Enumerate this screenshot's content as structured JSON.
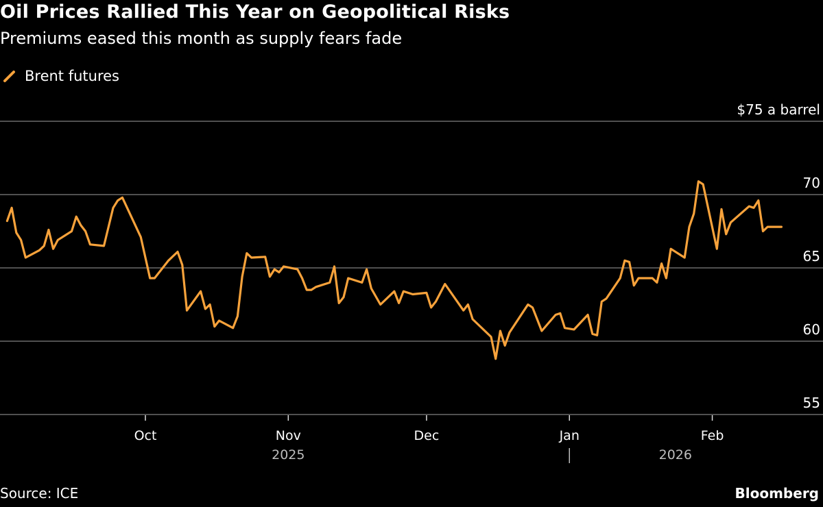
{
  "title": "Oil Prices Rallied This Year on Geopolitical Risks",
  "subtitle": "Premiums eased this month as supply fears fade",
  "source": "Source: ICE",
  "brand": "Bloomberg",
  "colors": {
    "background": "#000000",
    "series": "#f7a23b",
    "grid": "#6b6b6b",
    "year_label": "#bdbdbd"
  },
  "chart_data": {
    "type": "line",
    "title": "Oil Prices Rallied This Year on Geopolitical Risks",
    "subtitle": "Premiums eased this month as supply fears fade",
    "ylabel": "$75 a barrel",
    "ylim": [
      55,
      75
    ],
    "yticks": [
      {
        "value": 75,
        "label": "$75 a barrel"
      },
      {
        "value": 70,
        "label": "70"
      },
      {
        "value": 65,
        "label": "65"
      },
      {
        "value": 60,
        "label": "60"
      },
      {
        "value": 55,
        "label": "55"
      }
    ],
    "xlim": [
      "2025-09-01",
      "2026-02-16"
    ],
    "xticks": [
      {
        "date": "2025-10-01",
        "label": "Oct"
      },
      {
        "date": "2025-11-01",
        "label": "Nov"
      },
      {
        "date": "2025-12-01",
        "label": "Dec"
      },
      {
        "date": "2026-01-01",
        "label": "Jan"
      },
      {
        "date": "2026-02-01",
        "label": "Feb"
      }
    ],
    "year_labels": [
      {
        "date": "2025-11-01",
        "label": "2025"
      },
      {
        "date": "2026-01-24",
        "label": "2026"
      }
    ],
    "year_separator": "2026-01-01",
    "grid": true,
    "legend": "top-left",
    "series": [
      {
        "name": "Brent futures",
        "points": [
          [
            "2025-09-01",
            68.2
          ],
          [
            "2025-09-02",
            69.1
          ],
          [
            "2025-09-03",
            67.4
          ],
          [
            "2025-09-04",
            66.9
          ],
          [
            "2025-09-05",
            65.7
          ],
          [
            "2025-09-08",
            66.2
          ],
          [
            "2025-09-09",
            66.5
          ],
          [
            "2025-09-10",
            67.6
          ],
          [
            "2025-09-11",
            66.3
          ],
          [
            "2025-09-12",
            66.9
          ],
          [
            "2025-09-15",
            67.5
          ],
          [
            "2025-09-16",
            68.5
          ],
          [
            "2025-09-17",
            67.9
          ],
          [
            "2025-09-18",
            67.5
          ],
          [
            "2025-09-19",
            66.6
          ],
          [
            "2025-09-22",
            66.5
          ],
          [
            "2025-09-24",
            69.1
          ],
          [
            "2025-09-25",
            69.6
          ],
          [
            "2025-09-26",
            69.8
          ],
          [
            "2025-09-30",
            67.1
          ],
          [
            "2025-10-02",
            64.3
          ],
          [
            "2025-10-03",
            64.3
          ],
          [
            "2025-10-06",
            65.5
          ],
          [
            "2025-10-08",
            66.1
          ],
          [
            "2025-10-09",
            65.2
          ],
          [
            "2025-10-10",
            62.1
          ],
          [
            "2025-10-13",
            63.4
          ],
          [
            "2025-10-14",
            62.2
          ],
          [
            "2025-10-15",
            62.5
          ],
          [
            "2025-10-16",
            61.0
          ],
          [
            "2025-10-17",
            61.4
          ],
          [
            "2025-10-20",
            60.9
          ],
          [
            "2025-10-21",
            61.7
          ],
          [
            "2025-10-22",
            64.4
          ],
          [
            "2025-10-23",
            66.0
          ],
          [
            "2025-10-24",
            65.7
          ],
          [
            "2025-10-27",
            65.75
          ],
          [
            "2025-10-28",
            64.4
          ],
          [
            "2025-10-29",
            64.9
          ],
          [
            "2025-10-30",
            64.7
          ],
          [
            "2025-10-31",
            65.1
          ],
          [
            "2025-11-03",
            64.9
          ],
          [
            "2025-11-04",
            64.3
          ],
          [
            "2025-11-05",
            63.5
          ],
          [
            "2025-11-06",
            63.5
          ],
          [
            "2025-11-07",
            63.7
          ],
          [
            "2025-11-10",
            64.0
          ],
          [
            "2025-11-11",
            65.1
          ],
          [
            "2025-11-12",
            62.6
          ],
          [
            "2025-11-13",
            63.0
          ],
          [
            "2025-11-14",
            64.3
          ],
          [
            "2025-11-17",
            64.0
          ],
          [
            "2025-11-18",
            64.9
          ],
          [
            "2025-11-19",
            63.6
          ],
          [
            "2025-11-21",
            62.5
          ],
          [
            "2025-11-24",
            63.4
          ],
          [
            "2025-11-25",
            62.6
          ],
          [
            "2025-11-26",
            63.4
          ],
          [
            "2025-11-28",
            63.2
          ],
          [
            "2025-12-01",
            63.3
          ],
          [
            "2025-12-02",
            62.3
          ],
          [
            "2025-12-03",
            62.7
          ],
          [
            "2025-12-05",
            63.9
          ],
          [
            "2025-12-09",
            62.1
          ],
          [
            "2025-12-10",
            62.5
          ],
          [
            "2025-12-11",
            61.5
          ],
          [
            "2025-12-15",
            60.3
          ],
          [
            "2025-12-16",
            58.8
          ],
          [
            "2025-12-17",
            60.7
          ],
          [
            "2025-12-18",
            59.7
          ],
          [
            "2025-12-19",
            60.6
          ],
          [
            "2025-12-23",
            62.5
          ],
          [
            "2025-12-24",
            62.3
          ],
          [
            "2025-12-26",
            60.7
          ],
          [
            "2025-12-29",
            61.8
          ],
          [
            "2025-12-30",
            61.9
          ],
          [
            "2025-12-31",
            60.9
          ],
          [
            "2026-01-02",
            60.8
          ],
          [
            "2026-01-05",
            61.8
          ],
          [
            "2026-01-06",
            60.5
          ],
          [
            "2026-01-07",
            60.4
          ],
          [
            "2026-01-08",
            62.7
          ],
          [
            "2026-01-09",
            62.9
          ],
          [
            "2026-01-12",
            64.3
          ],
          [
            "2026-01-13",
            65.5
          ],
          [
            "2026-01-14",
            65.4
          ],
          [
            "2026-01-15",
            63.8
          ],
          [
            "2026-01-16",
            64.3
          ],
          [
            "2026-01-19",
            64.3
          ],
          [
            "2026-01-20",
            64.0
          ],
          [
            "2026-01-21",
            65.3
          ],
          [
            "2026-01-22",
            64.3
          ],
          [
            "2026-01-23",
            66.3
          ],
          [
            "2026-01-26",
            65.7
          ],
          [
            "2026-01-27",
            67.8
          ],
          [
            "2026-01-28",
            68.7
          ],
          [
            "2026-01-29",
            70.9
          ],
          [
            "2026-01-30",
            70.7
          ],
          [
            "2026-02-02",
            66.3
          ],
          [
            "2026-02-03",
            69.0
          ],
          [
            "2026-02-04",
            67.3
          ],
          [
            "2026-02-05",
            68.1
          ],
          [
            "2026-02-09",
            69.2
          ],
          [
            "2026-02-10",
            69.1
          ],
          [
            "2026-02-11",
            69.6
          ],
          [
            "2026-02-12",
            67.5
          ],
          [
            "2026-02-13",
            67.8
          ],
          [
            "2026-02-16",
            67.8
          ]
        ]
      }
    ]
  }
}
